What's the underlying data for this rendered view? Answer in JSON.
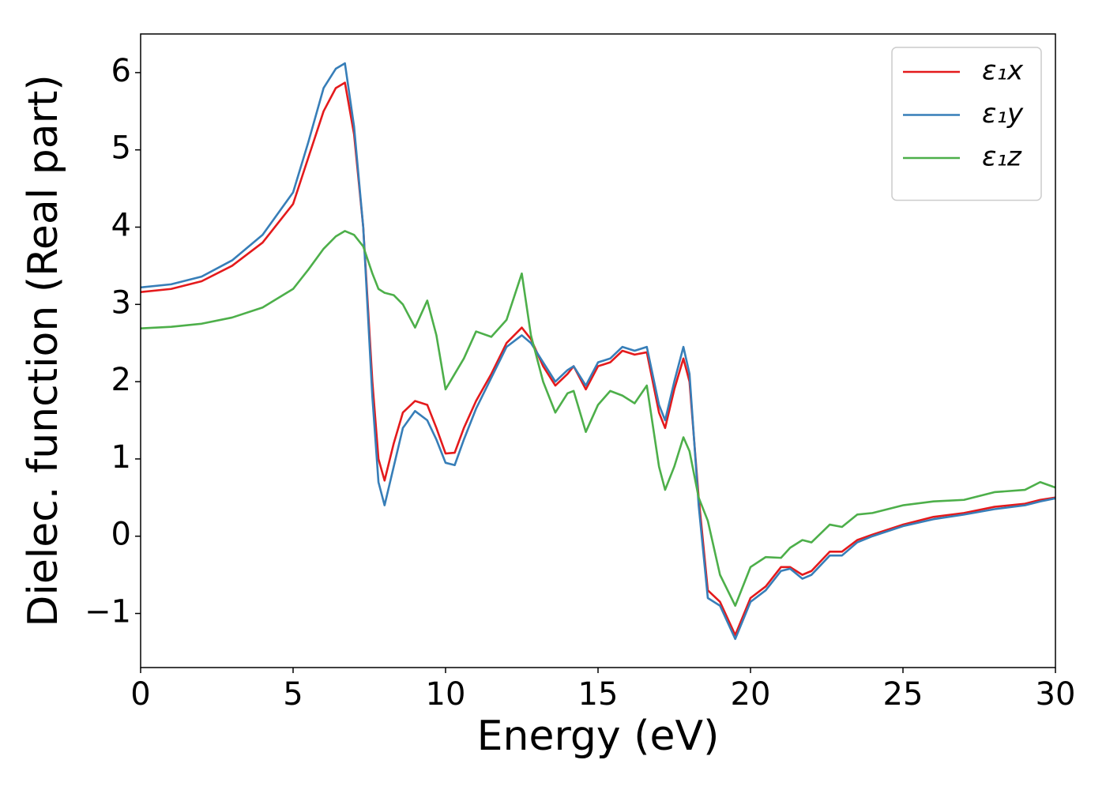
{
  "chart_data": {
    "type": "line",
    "xlabel": "Energy (eV)",
    "ylabel": "Dielec. function (Real part)",
    "x": [
      0,
      1,
      2,
      3,
      4,
      5,
      5.5,
      6,
      6.4,
      6.7,
      7,
      7.3,
      7.6,
      7.8,
      8.0,
      8.3,
      8.6,
      9.0,
      9.4,
      9.7,
      10.0,
      10.3,
      10.6,
      11,
      11.5,
      12,
      12.5,
      12.8,
      13.2,
      13.6,
      14.0,
      14.2,
      14.6,
      15,
      15.4,
      15.8,
      16.2,
      16.6,
      17.0,
      17.2,
      17.5,
      17.8,
      18.0,
      18.3,
      18.6,
      19.0,
      19.5,
      20,
      20.5,
      21,
      21.3,
      21.7,
      22,
      22.6,
      23,
      23.5,
      24,
      25,
      26,
      27,
      28,
      29,
      29.5,
      30
    ],
    "series": [
      {
        "name": "ε₁x",
        "color": "#e41a1c",
        "values": [
          3.16,
          3.2,
          3.3,
          3.5,
          3.8,
          4.3,
          4.9,
          5.5,
          5.8,
          5.87,
          5.2,
          4.0,
          2.0,
          1.0,
          0.72,
          1.2,
          1.6,
          1.75,
          1.7,
          1.4,
          1.07,
          1.08,
          1.4,
          1.75,
          2.1,
          2.5,
          2.7,
          2.55,
          2.2,
          1.95,
          2.1,
          2.2,
          1.9,
          2.2,
          2.25,
          2.4,
          2.35,
          2.38,
          1.6,
          1.4,
          1.9,
          2.3,
          2.0,
          0.5,
          -0.7,
          -0.85,
          -1.28,
          -0.8,
          -0.65,
          -0.4,
          -0.4,
          -0.5,
          -0.45,
          -0.2,
          -0.2,
          -0.05,
          0.02,
          0.15,
          0.25,
          0.3,
          0.38,
          0.42,
          0.47,
          0.5
        ]
      },
      {
        "name": "ε₁y",
        "color": "#377eb8",
        "values": [
          3.22,
          3.26,
          3.36,
          3.57,
          3.9,
          4.45,
          5.1,
          5.8,
          6.05,
          6.12,
          5.3,
          4.0,
          1.8,
          0.7,
          0.4,
          0.9,
          1.4,
          1.62,
          1.5,
          1.25,
          0.95,
          0.92,
          1.25,
          1.65,
          2.05,
          2.45,
          2.6,
          2.5,
          2.25,
          2.0,
          2.15,
          2.2,
          1.95,
          2.25,
          2.3,
          2.45,
          2.4,
          2.45,
          1.7,
          1.5,
          2.0,
          2.45,
          2.1,
          0.4,
          -0.8,
          -0.9,
          -1.33,
          -0.85,
          -0.7,
          -0.45,
          -0.42,
          -0.55,
          -0.5,
          -0.25,
          -0.25,
          -0.08,
          0,
          0.13,
          0.22,
          0.28,
          0.35,
          0.4,
          0.45,
          0.49
        ]
      },
      {
        "name": "ε₁z",
        "color": "#4daf4a",
        "values": [
          2.69,
          2.71,
          2.75,
          2.83,
          2.96,
          3.2,
          3.45,
          3.72,
          3.88,
          3.95,
          3.9,
          3.75,
          3.4,
          3.2,
          3.15,
          3.12,
          3.0,
          2.7,
          3.05,
          2.6,
          1.9,
          2.1,
          2.3,
          2.65,
          2.58,
          2.8,
          3.4,
          2.6,
          2.0,
          1.6,
          1.85,
          1.88,
          1.35,
          1.7,
          1.88,
          1.82,
          1.72,
          1.95,
          0.9,
          0.6,
          0.9,
          1.28,
          1.1,
          0.5,
          0.2,
          -0.5,
          -0.9,
          -0.4,
          -0.27,
          -0.28,
          -0.15,
          -0.05,
          -0.08,
          0.15,
          0.12,
          0.28,
          0.3,
          0.4,
          0.45,
          0.47,
          0.57,
          0.6,
          0.7,
          0.63
        ]
      }
    ],
    "xlim": [
      0,
      30
    ],
    "xticks": [
      0,
      5,
      10,
      15,
      20,
      25,
      30
    ],
    "ylim": [
      -1.7,
      6.5
    ],
    "yticks": [
      {
        "value": -1,
        "label": "−1"
      },
      0,
      1,
      2,
      3,
      4,
      5,
      6
    ],
    "grid": false,
    "legend": "upper right"
  }
}
